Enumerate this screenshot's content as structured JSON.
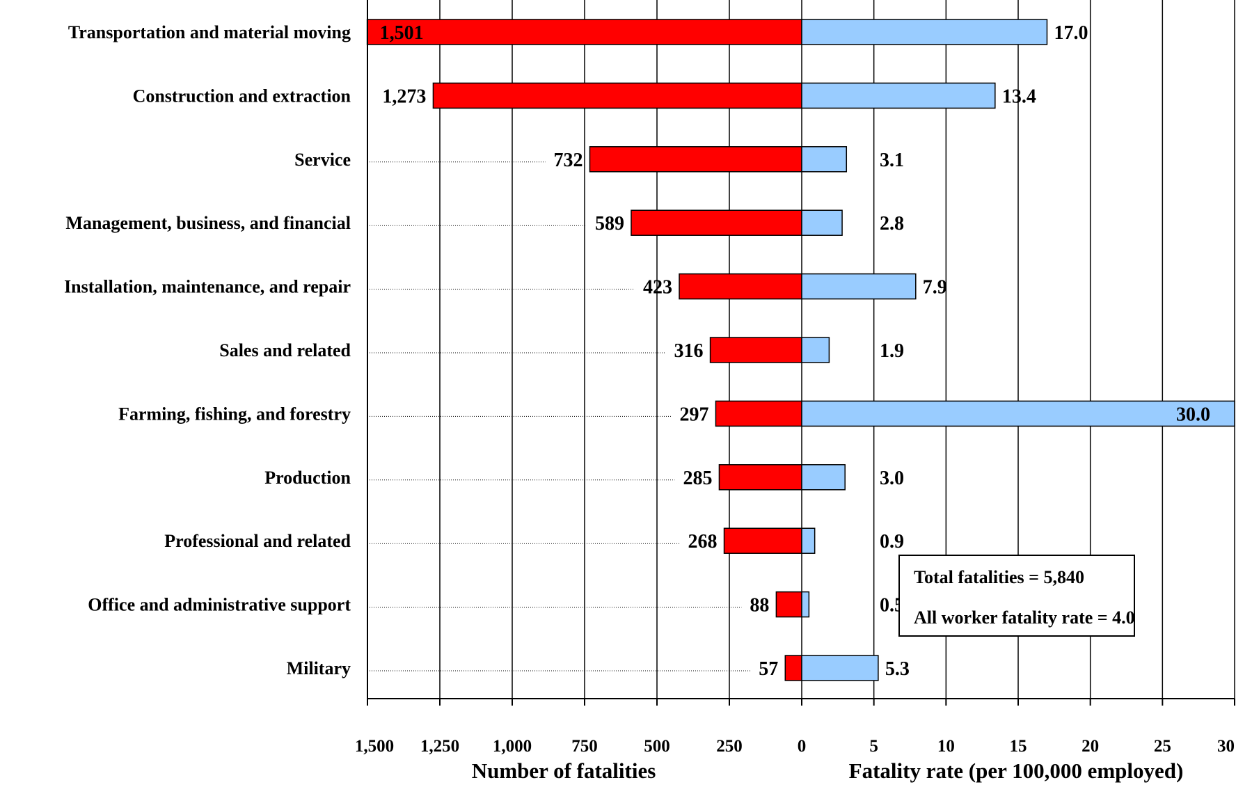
{
  "chart_data": {
    "type": "bar",
    "layout": "back-to-back horizontal",
    "categories": [
      "Transportation and material moving",
      "Construction and extraction",
      "Service",
      "Management, business, and financial",
      "Installation, maintenance, and repair",
      "Sales and related",
      "Farming, fishing, and forestry",
      "Production",
      "Professional and related",
      "Office and administrative support",
      "Military"
    ],
    "fatalities": {
      "values": [
        1501,
        1273,
        732,
        589,
        423,
        316,
        297,
        285,
        268,
        88,
        57
      ],
      "labels": [
        "1,501",
        "1,273",
        "732",
        "589",
        "423",
        "316",
        "297",
        "285",
        "268",
        "88",
        "57"
      ],
      "xlabel": "Number of fatalities",
      "xlim": [
        1500,
        0
      ],
      "ticks": [
        "1,500",
        "1,250",
        "1,000",
        "750",
        "500",
        "250",
        "0"
      ],
      "tick_values": [
        1500,
        1250,
        1000,
        750,
        500,
        250,
        0
      ],
      "color": "#ff0000"
    },
    "rates": {
      "values": [
        17.0,
        13.4,
        3.1,
        2.8,
        7.9,
        1.9,
        30.0,
        3.0,
        0.9,
        0.5,
        5.3
      ],
      "labels": [
        "17.0",
        "13.4",
        "3.1",
        "2.8",
        "7.9",
        "1.9",
        "30.0",
        "3.0",
        "0.9",
        "0.5",
        "5.3"
      ],
      "xlabel": "Fatality rate (per 100,000 employed)",
      "xlim": [
        0,
        30
      ],
      "ticks": [
        "5",
        "10",
        "15",
        "20",
        "25",
        "30"
      ],
      "tick_values": [
        5,
        10,
        15,
        20,
        25,
        30
      ],
      "color": "#99ccff"
    },
    "grid": true,
    "annotation": {
      "lines": [
        "Total fatalities = 5,840",
        "All worker fatality rate = 4.0"
      ]
    }
  }
}
